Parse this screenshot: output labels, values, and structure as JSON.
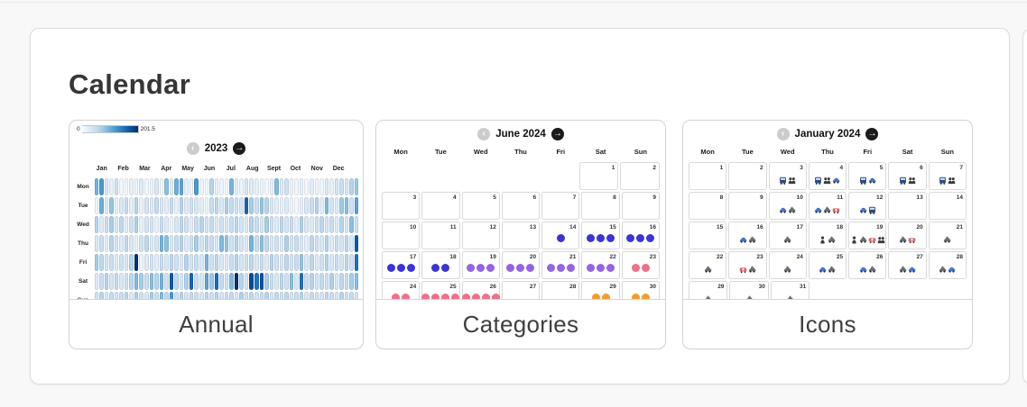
{
  "page": {
    "title": "Calendar"
  },
  "nav_icons": {
    "prev": "chevron-left-circle",
    "next": "arrow-right-circle"
  },
  "cards": [
    {
      "id": "annual",
      "label": "Annual",
      "chart_data": {
        "type": "heatmap",
        "title": "2023",
        "legend": {
          "min": "0",
          "max": "201.5"
        },
        "vmax": 201.5,
        "colormap": [
          "#f7fbff",
          "#deebf7",
          "#c6dbef",
          "#9ecae1",
          "#6baed6",
          "#4292c6",
          "#2171b5",
          "#08519c",
          "#08306b"
        ],
        "months": [
          "Jan",
          "Feb",
          "Mar",
          "Apr",
          "May",
          "Jun",
          "Jul",
          "Aug",
          "Sept",
          "Oct",
          "Nov",
          "Dec"
        ],
        "day_rows": [
          "Mon",
          "Tue",
          "Wed",
          "Thu",
          "Fri",
          "Sat",
          "Sun"
        ],
        "values": [
          [
            95,
            120,
            30,
            15,
            40,
            8,
            5,
            18,
            12,
            25,
            6,
            10,
            30,
            5,
            85,
            20,
            100,
            110,
            15,
            8,
            120,
            10,
            5,
            60,
            15,
            10,
            5,
            95,
            20,
            12,
            30,
            25,
            18,
            10,
            5,
            15,
            90,
            25,
            40,
            12,
            8,
            15,
            5,
            20,
            10,
            8,
            25,
            15,
            35,
            45,
            30,
            60,
            75
          ],
          [
            10,
            100,
            25,
            80,
            15,
            30,
            45,
            20,
            60,
            15,
            35,
            25,
            50,
            30,
            20,
            45,
            15,
            60,
            25,
            40,
            30,
            20,
            10,
            45,
            55,
            30,
            65,
            50,
            40,
            35,
            160,
            70,
            45,
            80,
            60,
            30,
            20,
            15,
            25,
            10,
            5,
            15,
            30,
            45,
            60,
            20,
            90,
            35,
            25,
            75,
            85,
            40,
            110
          ],
          [
            60,
            25,
            45,
            70,
            30,
            55,
            20,
            40,
            65,
            15,
            35,
            35,
            15,
            45,
            25,
            10,
            30,
            55,
            40,
            20,
            45,
            60,
            35,
            50,
            25,
            40,
            30,
            45,
            55,
            35,
            25,
            60,
            45,
            30,
            70,
            40,
            25,
            55,
            35,
            45,
            20,
            65,
            30,
            25,
            40,
            55,
            35,
            45,
            25,
            60,
            30,
            85,
            40
          ],
          [
            30,
            45,
            20,
            60,
            35,
            25,
            50,
            30,
            15,
            40,
            55,
            25,
            35,
            95,
            85,
            30,
            45,
            60,
            25,
            40,
            70,
            35,
            55,
            45,
            30,
            90,
            80,
            40,
            60,
            35,
            25,
            95,
            45,
            85,
            55,
            30,
            40,
            25,
            65,
            35,
            45,
            30,
            20,
            55,
            40,
            30,
            60,
            25,
            45,
            35,
            55,
            30,
            170
          ],
          [
            70,
            55,
            35,
            45,
            25,
            40,
            30,
            60,
            201,
            10,
            25,
            35,
            20,
            45,
            30,
            55,
            40,
            25,
            60,
            35,
            45,
            30,
            95,
            40,
            55,
            30,
            25,
            45,
            60,
            35,
            40,
            55,
            30,
            45,
            25,
            60,
            40,
            30,
            55,
            35,
            45,
            80,
            30,
            55,
            25,
            40,
            60,
            30,
            45,
            35,
            55,
            40,
            150
          ],
          [
            25,
            45,
            60,
            35,
            50,
            30,
            40,
            55,
            90,
            70,
            45,
            85,
            60,
            95,
            40,
            170,
            55,
            30,
            65,
            160,
            45,
            30,
            110,
            75,
            155,
            50,
            40,
            90,
            201,
            60,
            35,
            180,
            150,
            175,
            70,
            45,
            30,
            55,
            40,
            85,
            30,
            150,
            45,
            60,
            35,
            50,
            40,
            65,
            30,
            55,
            45,
            70,
            85
          ],
          [
            40,
            60,
            30,
            50,
            35,
            45,
            55,
            25,
            65,
            40,
            30,
            70,
            45,
            90,
            55,
            120,
            40,
            60,
            35,
            50,
            45,
            30,
            55,
            40,
            60,
            35,
            45,
            50,
            30,
            65,
            40,
            55,
            35,
            45,
            60,
            30,
            50,
            40,
            55,
            35,
            45,
            60,
            30,
            50,
            40,
            35,
            55,
            45,
            30,
            60,
            40,
            50,
            35
          ]
        ]
      }
    },
    {
      "id": "categories",
      "label": "Categories",
      "chart_data": {
        "type": "calendar-dots",
        "title": "June 2024",
        "weekday_headers": [
          "Mon",
          "Tue",
          "Wed",
          "Thu",
          "Fri",
          "Sat",
          "Sun"
        ],
        "weeks": [
          [
            null,
            null,
            null,
            null,
            null,
            1,
            2
          ],
          [
            3,
            4,
            5,
            6,
            7,
            8,
            9
          ],
          [
            10,
            11,
            12,
            13,
            14,
            15,
            16
          ],
          [
            17,
            18,
            19,
            20,
            21,
            22,
            23
          ],
          [
            24,
            25,
            26,
            27,
            28,
            29,
            30
          ]
        ],
        "dot_colors": {
          "blue": "#3b35d1",
          "purple": "#9565dd",
          "pink": "#f0708a",
          "orange": "#f39c2d"
        },
        "dots": {
          "14": [
            "blue"
          ],
          "15": [
            "blue",
            "blue",
            "blue"
          ],
          "16": [
            "blue",
            "blue",
            "blue"
          ],
          "17": [
            "blue",
            "blue",
            "blue"
          ],
          "18": [
            "blue",
            "blue"
          ],
          "19": [
            "purple",
            "purple",
            "purple"
          ],
          "20": [
            "purple",
            "purple",
            "purple"
          ],
          "21": [
            "purple",
            "purple",
            "purple"
          ],
          "22": [
            "purple",
            "purple",
            "purple"
          ],
          "23": [
            "pink",
            "pink"
          ],
          "24": [
            "pink",
            "pink"
          ],
          "25": [
            "pink",
            "pink",
            "pink",
            "pink"
          ],
          "26": [
            "pink",
            "pink",
            "pink",
            "pink"
          ],
          "29": [
            "orange",
            "orange"
          ],
          "30": [
            "orange",
            "orange"
          ]
        }
      }
    },
    {
      "id": "icons",
      "label": "Icons",
      "chart_data": {
        "type": "calendar-icons",
        "title": "January 2024",
        "weekday_headers": [
          "Mon",
          "Tue",
          "Wed",
          "Thu",
          "Fri",
          "Sat",
          "Sun"
        ],
        "weeks": [
          [
            1,
            2,
            3,
            4,
            5,
            6,
            7
          ],
          [
            8,
            9,
            10,
            11,
            12,
            13,
            14
          ],
          [
            15,
            16,
            17,
            18,
            19,
            20,
            21
          ],
          [
            22,
            23,
            24,
            25,
            26,
            27,
            28
          ],
          [
            29,
            30,
            31,
            null,
            null,
            null,
            null
          ]
        ],
        "icon_colors": {
          "bus": "#2e4a7d",
          "users": "#3a3a3a",
          "car": "#4a74c8",
          "taxi": "#6a6f78",
          "ambulance": "#d56a6a",
          "person": "#3a3a3a"
        },
        "icons": {
          "3": [
            "bus",
            "users"
          ],
          "4": [
            "bus",
            "users",
            "car"
          ],
          "5": [
            "bus",
            "car"
          ],
          "6": [
            "bus",
            "users"
          ],
          "7": [
            "bus",
            "users"
          ],
          "10": [
            "car",
            "taxi"
          ],
          "11": [
            "car",
            "taxi",
            "ambulance"
          ],
          "12": [
            "car",
            "bus"
          ],
          "16": [
            "car",
            "taxi"
          ],
          "17": [
            "taxi"
          ],
          "18": [
            "person",
            "taxi"
          ],
          "19": [
            "person",
            "taxi",
            "ambulance",
            "users"
          ],
          "20": [
            "taxi",
            "ambulance"
          ],
          "21": [
            "taxi"
          ],
          "22": [
            "taxi"
          ],
          "23": [
            "ambulance",
            "taxi"
          ],
          "24": [
            "taxi"
          ],
          "25": [
            "car",
            "taxi"
          ],
          "26": [
            "car",
            "taxi"
          ],
          "27": [
            "taxi",
            "car"
          ],
          "28": [
            "taxi",
            "car"
          ],
          "29": [
            "taxi"
          ],
          "30": [
            "taxi"
          ],
          "31": [
            "taxi"
          ]
        }
      }
    }
  ]
}
